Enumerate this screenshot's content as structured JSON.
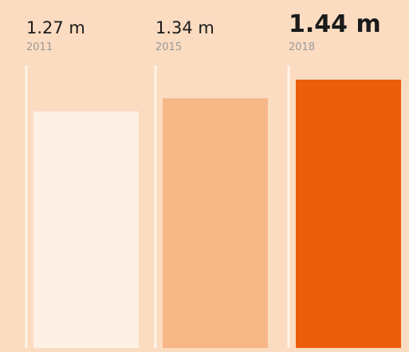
{
  "chart_data": {
    "type": "bar",
    "categories": [
      "2011",
      "2015",
      "2018"
    ],
    "values": [
      1.27,
      1.34,
      1.44
    ],
    "value_labels": [
      "1.27 m",
      "1.34 m",
      "1.44 m"
    ],
    "colors": [
      "#fdf0e5",
      "#f7b787",
      "#eb5f0c"
    ]
  }
}
